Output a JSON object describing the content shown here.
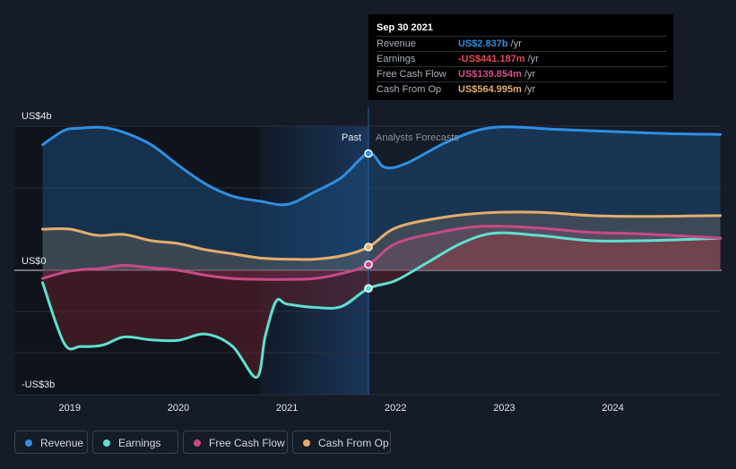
{
  "chart_data": {
    "type": "area",
    "y_unit_label": "US$",
    "y_ticks": [
      {
        "value": 4,
        "label": "US$4b"
      },
      {
        "value": 0,
        "label": "US$0"
      },
      {
        "value": -3,
        "label": "-US$3b"
      }
    ],
    "ylim": [
      -3,
      4
    ],
    "xlim": [
      2018.75,
      2024.99
    ],
    "x_ticks": [
      "2019",
      "2020",
      "2021",
      "2022",
      "2023",
      "2024"
    ],
    "past_label": "Past",
    "forecast_label": "Analysts Forecasts",
    "divider_x": 2021.75,
    "highlight_range": [
      2020.75,
      2021.75
    ],
    "series": [
      {
        "name": "Revenue",
        "color": "#2d8fe4",
        "fill": "#1b4a78",
        "points": [
          [
            2018.75,
            3.05
          ],
          [
            2018.95,
            3.4
          ],
          [
            2019.1,
            3.45
          ],
          [
            2019.3,
            3.47
          ],
          [
            2019.5,
            3.35
          ],
          [
            2019.75,
            3.05
          ],
          [
            2020.0,
            2.55
          ],
          [
            2020.25,
            2.1
          ],
          [
            2020.5,
            1.8
          ],
          [
            2020.75,
            1.68
          ],
          [
            2021.0,
            1.6
          ],
          [
            2021.25,
            1.9
          ],
          [
            2021.5,
            2.25
          ],
          [
            2021.75,
            2.837
          ],
          [
            2021.9,
            2.5
          ],
          [
            2022.1,
            2.6
          ],
          [
            2022.5,
            3.15
          ],
          [
            2022.9,
            3.47
          ],
          [
            2023.5,
            3.42
          ],
          [
            2024.0,
            3.37
          ],
          [
            2024.5,
            3.32
          ],
          [
            2024.99,
            3.3
          ]
        ]
      },
      {
        "name": "Earnings",
        "color": "#5fe0d0",
        "fill": "#5a1f2a",
        "points": [
          [
            2018.75,
            -0.3
          ],
          [
            2018.95,
            -1.78
          ],
          [
            2019.1,
            -1.85
          ],
          [
            2019.3,
            -1.82
          ],
          [
            2019.5,
            -1.62
          ],
          [
            2019.75,
            -1.69
          ],
          [
            2020.0,
            -1.7
          ],
          [
            2020.25,
            -1.55
          ],
          [
            2020.5,
            -1.85
          ],
          [
            2020.72,
            -2.6
          ],
          [
            2020.8,
            -1.6
          ],
          [
            2020.9,
            -0.75
          ],
          [
            2021.0,
            -0.82
          ],
          [
            2021.25,
            -0.9
          ],
          [
            2021.5,
            -0.88
          ],
          [
            2021.75,
            -0.441
          ],
          [
            2022.0,
            -0.25
          ],
          [
            2022.3,
            0.2
          ],
          [
            2022.6,
            0.65
          ],
          [
            2022.9,
            0.9
          ],
          [
            2023.3,
            0.85
          ],
          [
            2023.8,
            0.72
          ],
          [
            2024.3,
            0.72
          ],
          [
            2024.99,
            0.78
          ]
        ]
      },
      {
        "name": "Free Cash Flow",
        "color": "#c94a87",
        "points": [
          [
            2018.75,
            -0.2
          ],
          [
            2019.0,
            -0.02
          ],
          [
            2019.3,
            0.05
          ],
          [
            2019.5,
            0.12
          ],
          [
            2019.75,
            0.06
          ],
          [
            2020.0,
            0.0
          ],
          [
            2020.25,
            -0.12
          ],
          [
            2020.5,
            -0.2
          ],
          [
            2020.75,
            -0.22
          ],
          [
            2021.0,
            -0.22
          ],
          [
            2021.25,
            -0.2
          ],
          [
            2021.5,
            -0.08
          ],
          [
            2021.75,
            0.14
          ],
          [
            2022.0,
            0.65
          ],
          [
            2022.4,
            0.92
          ],
          [
            2022.8,
            1.07
          ],
          [
            2023.3,
            1.03
          ],
          [
            2023.8,
            0.92
          ],
          [
            2024.3,
            0.88
          ],
          [
            2024.99,
            0.78
          ]
        ]
      },
      {
        "name": "Cash From Op",
        "color": "#e3ad6c",
        "points": [
          [
            2018.75,
            1.0
          ],
          [
            2019.0,
            1.0
          ],
          [
            2019.25,
            0.85
          ],
          [
            2019.5,
            0.87
          ],
          [
            2019.75,
            0.72
          ],
          [
            2020.0,
            0.65
          ],
          [
            2020.25,
            0.5
          ],
          [
            2020.5,
            0.4
          ],
          [
            2020.75,
            0.3
          ],
          [
            2021.0,
            0.27
          ],
          [
            2021.25,
            0.27
          ],
          [
            2021.5,
            0.35
          ],
          [
            2021.75,
            0.565
          ],
          [
            2022.0,
            1.03
          ],
          [
            2022.4,
            1.27
          ],
          [
            2022.8,
            1.39
          ],
          [
            2023.3,
            1.41
          ],
          [
            2023.8,
            1.33
          ],
          [
            2024.3,
            1.31
          ],
          [
            2024.99,
            1.33
          ]
        ]
      }
    ]
  },
  "tooltip": {
    "date": "Sep 30 2021",
    "rows": [
      {
        "label": "Revenue",
        "value": "US$2.837b",
        "unit": "/yr",
        "color": "#2d8fe4"
      },
      {
        "label": "Earnings",
        "value": "-US$441.187m",
        "unit": "/yr",
        "color": "#e8485a"
      },
      {
        "label": "Free Cash Flow",
        "value": "US$139.854m",
        "unit": "/yr",
        "color": "#d24f8f"
      },
      {
        "label": "Cash From Op",
        "value": "US$564.995m",
        "unit": "/yr",
        "color": "#e3ad6c"
      }
    ]
  },
  "legend": [
    {
      "label": "Revenue",
      "color": "#2d8fe4"
    },
    {
      "label": "Earnings",
      "color": "#5fe0d0"
    },
    {
      "label": "Free Cash Flow",
      "color": "#c94a87"
    },
    {
      "label": "Cash From Op",
      "color": "#e3ad6c"
    }
  ]
}
